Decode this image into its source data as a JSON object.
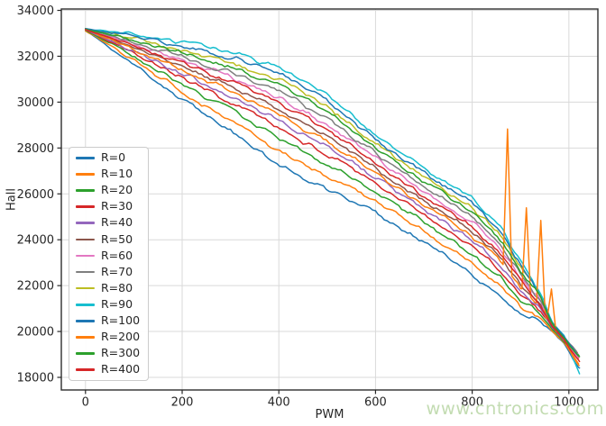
{
  "watermark": "www.cntronics.com",
  "chart_data": {
    "type": "line",
    "title": "",
    "xlabel": "PWM",
    "ylabel": "Hall",
    "xlim": [
      -50,
      1060
    ],
    "ylim": [
      17450,
      34060
    ],
    "x_ticks": [
      0,
      200,
      400,
      600,
      800,
      1000
    ],
    "y_ticks": [
      18000,
      20000,
      22000,
      24000,
      26000,
      28000,
      30000,
      32000,
      34000
    ],
    "grid": true,
    "grid_color": "#d9d9d9",
    "spine_color": "#2e2e2e",
    "legend_position": "center-left",
    "noise_amplitude": 115,
    "anchor_x": [
      0,
      100,
      200,
      300,
      400,
      500,
      600,
      700,
      800,
      860,
      900,
      940,
      965,
      990
    ],
    "series": [
      {
        "name": "R=0",
        "color": "#1f77b4",
        "y": [
          33120,
          31650,
          30100,
          28750,
          27250,
          26200,
          25200,
          23900,
          22500,
          21500,
          20700,
          20500,
          20000,
          19450
        ],
        "tail": [
          1022,
          18350
        ]
      },
      {
        "name": "R=10",
        "color": "#ff7f0e",
        "y": [
          33130,
          31830,
          30450,
          29225,
          27850,
          26775,
          25675,
          24350,
          22960,
          21920,
          21035,
          20670,
          20055,
          19500
        ],
        "tail": [
          1020,
          18600
        ]
      },
      {
        "name": "R=20",
        "color": "#2ca02c",
        "y": [
          33140,
          32000,
          30775,
          29670,
          28410,
          27305,
          26120,
          24765,
          23390,
          22310,
          21350,
          20825,
          20110,
          19545
        ],
        "tail": [
          1022,
          18950
        ]
      },
      {
        "name": "R=30",
        "color": "#d62728",
        "y": [
          33150,
          32130,
          31025,
          30010,
          28840,
          27715,
          26460,
          25085,
          23720,
          22610,
          21590,
          20945,
          20150,
          19580
        ],
        "tail": [
          1020,
          18800
        ]
      },
      {
        "name": "R=40",
        "color": "#9467bd",
        "y": [
          33155,
          32235,
          31225,
          30280,
          29185,
          28045,
          26730,
          25340,
          23985,
          22850,
          21780,
          21040,
          20180,
          19605
        ],
        "tail": [
          1018,
          19000
        ]
      },
      {
        "name": "R=50",
        "color": "#8c564b",
        "y": [
          33165,
          32390,
          31525,
          30690,
          29700,
          28535,
          27140,
          25725,
          24380,
          23210,
          22070,
          21185,
          20230,
          19650
        ],
        "tail": [
          1017,
          19100
        ]
      },
      {
        "name": "R=60",
        "color": "#e377c2",
        "y": [
          33175,
          32545,
          31825,
          31095,
          30215,
          29030,
          27545,
          26110,
          24775,
          23570,
          22355,
          21330,
          20275,
          19690
        ],
        "tail": [
          1019,
          18850
        ]
      },
      {
        "name": "R=70",
        "color": "#7f7f7f",
        "y": [
          33180,
          32625,
          31975,
          31300,
          30475,
          29275,
          27750,
          26300,
          24975,
          23750,
          22500,
          21400,
          20300,
          19710
        ],
        "tail": [
          1016,
          19150
        ]
      },
      {
        "name": "R=80",
        "color": "#bcbd22",
        "y": [
          33190,
          32790,
          32300,
          31740,
          31035,
          29810,
          28190,
          26715,
          25405,
          24140,
          22810,
          21555,
          20350,
          19760
        ],
        "tail": [
          1015,
          19050
        ]
      },
      {
        "name": "R=90",
        "color": "#17becf",
        "y": [
          33200,
          32950,
          32600,
          32150,
          31550,
          30300,
          28600,
          27100,
          25800,
          24500,
          23100,
          21700,
          20400,
          19800
        ],
        "tail": [
          1022,
          18150
        ]
      },
      {
        "name": "R=100",
        "color": "#1f77b4",
        "y": [
          33195,
          32870,
          32450,
          31945,
          31290,
          30055,
          28395,
          26910,
          25600,
          24320,
          22955,
          21630,
          20375,
          19780
        ],
        "tail": [
          1018,
          18950
        ]
      },
      {
        "name": "R=200",
        "color": "#ff7f0e",
        "y": [
          33160,
          32315,
          31375,
          30485,
          29445,
          28290,
          26935,
          25530,
          24185,
          23030,
          21925,
          21110,
          20205,
          19630
        ],
        "tail": [
          1021,
          18500
        ],
        "spikes": [
          [
            873,
            28830
          ],
          [
            912,
            25390
          ],
          [
            942,
            24840
          ],
          [
            964,
            21850
          ]
        ]
      },
      {
        "name": "R=300",
        "color": "#2ca02c",
        "y": [
          33185,
          32715,
          32150,
          31540,
          30775,
          29560,
          27990,
          26525,
          25205,
          23960,
          22670,
          21485,
          20330,
          19735
        ],
        "tail": [
          1020,
          18900
        ]
      },
      {
        "name": "R=400",
        "color": "#d62728",
        "y": [
          33170,
          32470,
          31675,
          30890,
          29960,
          28785,
          27340,
          25915,
          24580,
          23390,
          22210,
          21255,
          20250,
          19670
        ],
        "tail": [
          1022,
          18650
        ]
      }
    ]
  }
}
